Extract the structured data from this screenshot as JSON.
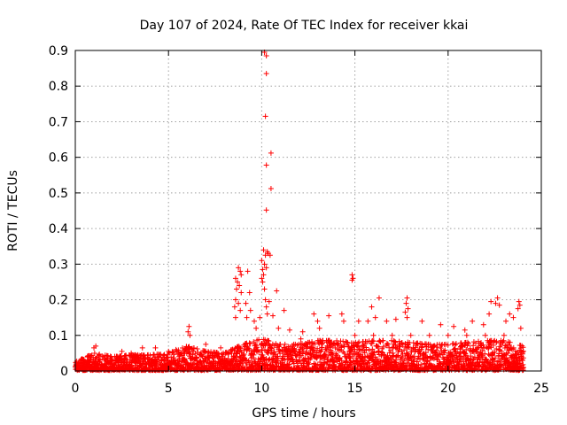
{
  "chart_data": {
    "type": "scatter",
    "title": "Day 107 of 2024, Rate Of TEC Index for receiver kkai",
    "xlabel": "GPS time / hours",
    "ylabel": "ROTI / TECUs",
    "xlim": [
      0,
      25
    ],
    "ylim": [
      0,
      0.9
    ],
    "x_ticks": [
      0,
      5,
      10,
      15,
      20,
      25
    ],
    "x_tick_labels": [
      "0",
      "5",
      "10",
      "15",
      "20",
      "25"
    ],
    "y_ticks": [
      0,
      0.1,
      0.2,
      0.3,
      0.4,
      0.5,
      0.6,
      0.7,
      0.8,
      0.9
    ],
    "y_tick_labels": [
      "0",
      "0.1",
      "0.2",
      "0.3",
      "0.4",
      "0.5",
      "0.6",
      "0.7",
      "0.8",
      "0.9"
    ],
    "grid": true,
    "marker": "+",
    "color": "#ff0000",
    "series": [
      {
        "name": "ROTI",
        "points": [
          [
            10.15,
            0.895
          ],
          [
            10.25,
            0.885
          ],
          [
            10.25,
            0.835
          ],
          [
            10.2,
            0.715
          ],
          [
            10.5,
            0.612
          ],
          [
            10.25,
            0.578
          ],
          [
            10.5,
            0.512
          ],
          [
            10.25,
            0.452
          ],
          [
            10.3,
            0.335
          ],
          [
            10.1,
            0.34
          ],
          [
            10.2,
            0.325
          ],
          [
            10.35,
            0.33
          ],
          [
            10.45,
            0.325
          ],
          [
            10.0,
            0.31
          ],
          [
            10.15,
            0.3
          ],
          [
            10.05,
            0.285
          ],
          [
            10.25,
            0.29
          ],
          [
            10.1,
            0.27
          ],
          [
            10.0,
            0.26
          ],
          [
            8.75,
            0.29
          ],
          [
            8.85,
            0.28
          ],
          [
            8.9,
            0.27
          ],
          [
            8.6,
            0.26
          ],
          [
            8.7,
            0.25
          ],
          [
            8.8,
            0.24
          ],
          [
            8.65,
            0.23
          ],
          [
            8.9,
            0.22
          ],
          [
            8.6,
            0.2
          ],
          [
            8.75,
            0.19
          ],
          [
            8.55,
            0.18
          ],
          [
            8.85,
            0.17
          ],
          [
            8.6,
            0.15
          ],
          [
            9.25,
            0.28
          ],
          [
            9.35,
            0.22
          ],
          [
            9.15,
            0.19
          ],
          [
            9.4,
            0.17
          ],
          [
            9.2,
            0.15
          ],
          [
            10.05,
            0.25
          ],
          [
            10.15,
            0.23
          ],
          [
            10.2,
            0.2
          ],
          [
            10.4,
            0.195
          ],
          [
            10.25,
            0.18
          ],
          [
            10.3,
            0.16
          ],
          [
            10.6,
            0.155
          ],
          [
            10.8,
            0.225
          ],
          [
            11.2,
            0.17
          ],
          [
            14.85,
            0.27
          ],
          [
            14.9,
            0.26
          ],
          [
            14.85,
            0.255
          ],
          [
            17.8,
            0.205
          ],
          [
            17.75,
            0.19
          ],
          [
            17.85,
            0.175
          ],
          [
            17.7,
            0.165
          ],
          [
            17.8,
            0.15
          ],
          [
            16.3,
            0.205
          ],
          [
            15.9,
            0.18
          ],
          [
            15.7,
            0.14
          ],
          [
            16.1,
            0.15
          ],
          [
            22.3,
            0.195
          ],
          [
            22.55,
            0.19
          ],
          [
            22.65,
            0.205
          ],
          [
            22.75,
            0.185
          ],
          [
            23.8,
            0.195
          ],
          [
            23.85,
            0.185
          ],
          [
            23.75,
            0.175
          ],
          [
            22.2,
            0.16
          ],
          [
            23.3,
            0.16
          ],
          [
            23.5,
            0.15
          ],
          [
            12.8,
            0.16
          ],
          [
            13.0,
            0.14
          ],
          [
            13.6,
            0.155
          ],
          [
            14.3,
            0.16
          ],
          [
            14.4,
            0.14
          ],
          [
            15.2,
            0.14
          ],
          [
            16.7,
            0.14
          ],
          [
            17.2,
            0.145
          ],
          [
            18.6,
            0.14
          ],
          [
            21.3,
            0.14
          ],
          [
            19.6,
            0.13
          ],
          [
            20.3,
            0.125
          ],
          [
            20.9,
            0.115
          ],
          [
            21.9,
            0.13
          ],
          [
            23.1,
            0.14
          ],
          [
            6.1,
            0.125
          ],
          [
            6.05,
            0.11
          ],
          [
            6.15,
            0.1
          ],
          [
            9.9,
            0.15
          ],
          [
            9.6,
            0.14
          ],
          [
            9.7,
            0.12
          ],
          [
            10.9,
            0.12
          ],
          [
            11.5,
            0.115
          ],
          [
            12.2,
            0.11
          ],
          [
            12.1,
            0.09
          ],
          [
            13.1,
            0.12
          ],
          [
            1.0,
            0.065
          ],
          [
            1.1,
            0.07
          ],
          [
            3.6,
            0.065
          ],
          [
            4.3,
            0.065
          ],
          [
            7.0,
            0.075
          ],
          [
            7.8,
            0.065
          ],
          [
            5.0,
            0.055
          ],
          [
            5.4,
            0.06
          ],
          [
            2.5,
            0.055
          ],
          [
            3.0,
            0.05
          ],
          [
            15.0,
            0.1
          ],
          [
            16.0,
            0.1
          ],
          [
            17.0,
            0.1
          ],
          [
            18.0,
            0.1
          ],
          [
            19.0,
            0.1
          ],
          [
            20.0,
            0.1
          ],
          [
            21.0,
            0.1
          ],
          [
            22.0,
            0.1
          ],
          [
            23.0,
            0.1
          ],
          [
            23.9,
            0.12
          ],
          [
            24.0,
            0.03
          ],
          [
            24.05,
            0.01
          ],
          [
            0.05,
            0.02
          ],
          [
            0.15,
            0.015
          ],
          [
            0.3,
            0.03
          ],
          [
            0.5,
            0.025
          ]
        ],
        "baseline_band": [
          [
            0.0,
            0.025
          ],
          [
            1.0,
            0.05
          ],
          [
            2.0,
            0.04
          ],
          [
            3.0,
            0.045
          ],
          [
            4.0,
            0.045
          ],
          [
            5.0,
            0.05
          ],
          [
            6.0,
            0.07
          ],
          [
            7.0,
            0.055
          ],
          [
            8.0,
            0.05
          ],
          [
            9.0,
            0.075
          ],
          [
            10.0,
            0.09
          ],
          [
            11.0,
            0.075
          ],
          [
            12.0,
            0.075
          ],
          [
            13.0,
            0.085
          ],
          [
            14.0,
            0.085
          ],
          [
            15.0,
            0.08
          ],
          [
            16.0,
            0.085
          ],
          [
            17.0,
            0.085
          ],
          [
            18.0,
            0.08
          ],
          [
            19.0,
            0.075
          ],
          [
            20.0,
            0.075
          ],
          [
            21.0,
            0.08
          ],
          [
            22.0,
            0.085
          ],
          [
            23.0,
            0.085
          ],
          [
            24.0,
            0.07
          ]
        ]
      }
    ]
  }
}
